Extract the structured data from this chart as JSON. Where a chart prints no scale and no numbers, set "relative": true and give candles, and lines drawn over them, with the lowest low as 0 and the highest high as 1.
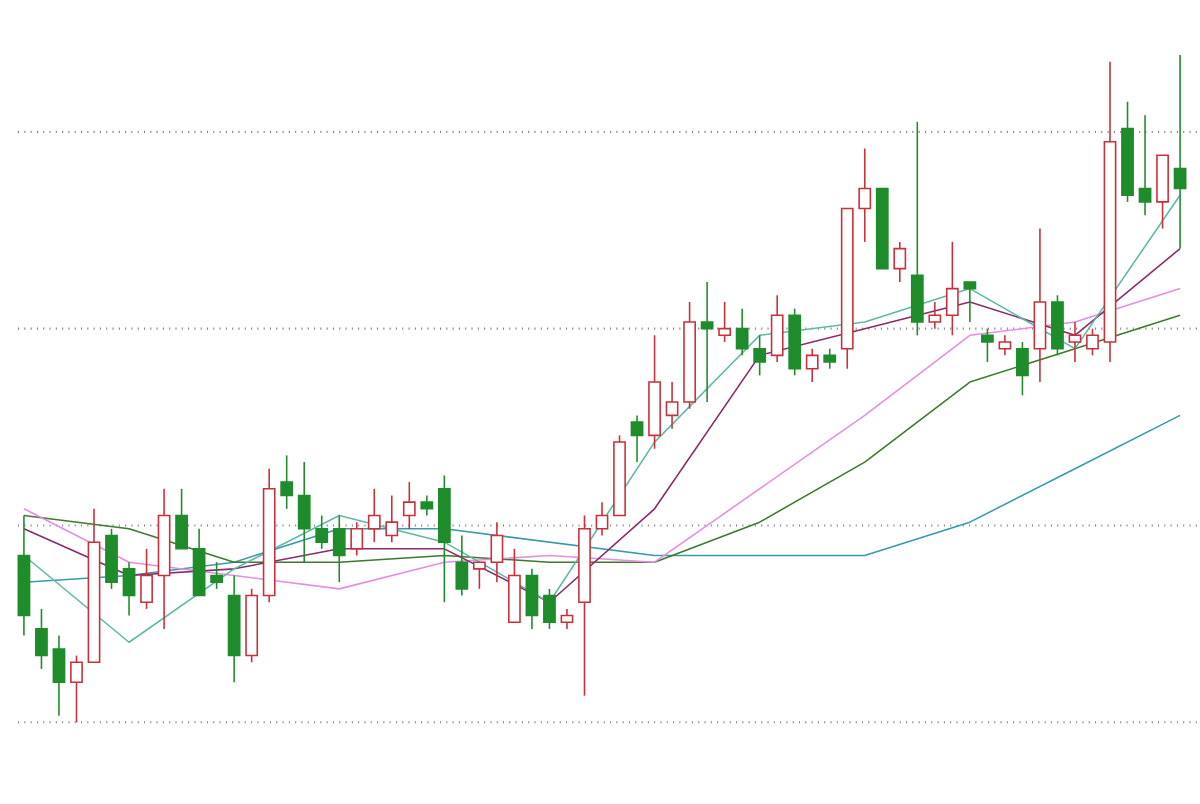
{
  "chart_data": {
    "type": "candlestick",
    "relative": true,
    "grid": "y",
    "categories": [
      null,
      null,
      null,
      null,
      null,
      null,
      null,
      null,
      null,
      null,
      null,
      null,
      null,
      null,
      null,
      null,
      null,
      null,
      null,
      null,
      null,
      null,
      null,
      null,
      null,
      null,
      null,
      null,
      null,
      null,
      null,
      null,
      null,
      null,
      null,
      null,
      null,
      null,
      null,
      null,
      null,
      null,
      null,
      null,
      null,
      null,
      null,
      null,
      null,
      null,
      null,
      null,
      null,
      null,
      null,
      null,
      null,
      null,
      null,
      null,
      null,
      null,
      null,
      null,
      null,
      null,
      null
    ],
    "ohlc": [
      [
        0.25,
        0.31,
        0.13,
        0.16
      ],
      [
        0.14,
        0.17,
        0.08,
        0.1
      ],
      [
        0.11,
        0.13,
        0.01,
        0.06
      ],
      [
        0.06,
        0.1,
        0.0,
        0.09
      ],
      [
        0.09,
        0.32,
        0.09,
        0.27
      ],
      [
        0.28,
        0.29,
        0.2,
        0.21
      ],
      [
        0.23,
        0.24,
        0.16,
        0.19
      ],
      [
        0.18,
        0.26,
        0.17,
        0.22
      ],
      [
        0.22,
        0.35,
        0.14,
        0.31
      ],
      [
        0.31,
        0.35,
        0.26,
        0.26
      ],
      [
        0.26,
        0.29,
        0.19,
        0.19
      ],
      [
        0.22,
        0.24,
        0.2,
        0.21
      ],
      [
        0.19,
        0.22,
        0.06,
        0.1
      ],
      [
        0.1,
        0.2,
        0.09,
        0.19
      ],
      [
        0.19,
        0.38,
        0.18,
        0.35
      ],
      [
        0.36,
        0.4,
        0.32,
        0.34
      ],
      [
        0.34,
        0.39,
        0.24,
        0.29
      ],
      [
        0.29,
        0.31,
        0.26,
        0.27
      ],
      [
        0.29,
        0.31,
        0.21,
        0.25
      ],
      [
        0.26,
        0.3,
        0.25,
        0.29
      ],
      [
        0.29,
        0.35,
        0.27,
        0.31
      ],
      [
        0.28,
        0.34,
        0.27,
        0.3
      ],
      [
        0.31,
        0.36,
        0.29,
        0.33
      ],
      [
        0.33,
        0.34,
        0.31,
        0.32
      ],
      [
        0.35,
        0.37,
        0.18,
        0.27
      ],
      [
        0.24,
        0.28,
        0.19,
        0.2
      ],
      [
        0.23,
        0.24,
        0.2,
        0.24
      ],
      [
        0.24,
        0.3,
        0.21,
        0.28
      ],
      [
        0.15,
        0.26,
        0.15,
        0.22
      ],
      [
        0.22,
        0.23,
        0.14,
        0.16
      ],
      [
        0.19,
        0.2,
        0.14,
        0.15
      ],
      [
        0.15,
        0.17,
        0.14,
        0.16
      ],
      [
        0.18,
        0.31,
        0.04,
        0.29
      ],
      [
        0.29,
        0.33,
        0.28,
        0.31
      ],
      [
        0.31,
        0.43,
        0.31,
        0.42
      ],
      [
        0.45,
        0.46,
        0.39,
        0.43
      ],
      [
        0.43,
        0.58,
        0.41,
        0.51
      ],
      [
        0.46,
        0.51,
        0.44,
        0.48
      ],
      [
        0.48,
        0.63,
        0.47,
        0.6
      ],
      [
        0.6,
        0.66,
        0.48,
        0.59
      ],
      [
        0.58,
        0.63,
        0.57,
        0.59
      ],
      [
        0.59,
        0.62,
        0.55,
        0.56
      ],
      [
        0.56,
        0.58,
        0.52,
        0.54
      ],
      [
        0.55,
        0.64,
        0.54,
        0.61
      ],
      [
        0.61,
        0.62,
        0.52,
        0.53
      ],
      [
        0.53,
        0.56,
        0.51,
        0.55
      ],
      [
        0.55,
        0.56,
        0.53,
        0.54
      ],
      [
        0.56,
        0.77,
        0.53,
        0.77
      ],
      [
        0.77,
        0.86,
        0.72,
        0.8
      ],
      [
        0.8,
        0.8,
        0.68,
        0.68
      ],
      [
        0.68,
        0.72,
        0.66,
        0.71
      ],
      [
        0.67,
        0.9,
        0.58,
        0.6
      ],
      [
        0.6,
        0.63,
        0.59,
        0.61
      ],
      [
        0.61,
        0.72,
        0.58,
        0.65
      ],
      [
        0.66,
        0.66,
        0.6,
        0.65
      ],
      [
        0.58,
        0.59,
        0.54,
        0.57
      ],
      [
        0.56,
        0.58,
        0.55,
        0.57
      ],
      [
        0.56,
        0.57,
        0.49,
        0.52
      ],
      [
        0.56,
        0.74,
        0.51,
        0.63
      ],
      [
        0.63,
        0.64,
        0.55,
        0.56
      ],
      [
        0.57,
        0.6,
        0.54,
        0.58
      ],
      [
        0.56,
        0.59,
        0.55,
        0.58
      ],
      [
        0.57,
        0.99,
        0.54,
        0.87
      ],
      [
        0.89,
        0.93,
        0.78,
        0.79
      ],
      [
        0.8,
        0.91,
        0.76,
        0.78
      ],
      [
        0.78,
        0.85,
        0.74,
        0.85
      ],
      [
        0.83,
        1.0,
        0.71,
        0.8
      ]
    ],
    "series": [
      {
        "type": "line",
        "color": "#3a9aa8",
        "values": [
          0.21,
          null,
          null,
          null,
          null,
          null,
          0.22,
          null,
          null,
          null,
          null,
          null,
          0.24,
          null,
          null,
          null,
          null,
          null,
          0.29,
          null,
          null,
          null,
          null,
          null,
          0.29,
          null,
          null,
          null,
          null,
          null,
          0.27,
          null,
          null,
          null,
          null,
          null,
          0.25,
          null,
          null,
          null,
          null,
          null,
          0.25,
          null,
          null,
          null,
          null,
          null,
          0.25,
          null,
          null,
          null,
          null,
          null,
          0.3,
          null,
          null,
          null,
          null,
          null,
          0.38,
          null,
          null,
          null,
          null,
          null,
          0.46
        ]
      },
      {
        "type": "line",
        "color": "#3d7a2e",
        "values": [
          0.31,
          null,
          null,
          null,
          null,
          null,
          0.29,
          null,
          null,
          null,
          null,
          null,
          0.24,
          null,
          null,
          null,
          null,
          null,
          0.24,
          null,
          null,
          null,
          null,
          null,
          0.25,
          null,
          null,
          null,
          null,
          null,
          0.24,
          null,
          null,
          null,
          null,
          null,
          0.24,
          null,
          null,
          null,
          null,
          null,
          0.3,
          null,
          null,
          null,
          null,
          null,
          0.39,
          null,
          null,
          null,
          null,
          null,
          0.51,
          null,
          null,
          null,
          null,
          null,
          0.56,
          null,
          null,
          null,
          null,
          null,
          0.61
        ]
      },
      {
        "type": "line",
        "color": "#e58fe0",
        "values": [
          0.32,
          null,
          null,
          null,
          null,
          null,
          0.24,
          null,
          null,
          null,
          null,
          null,
          0.22,
          null,
          null,
          null,
          null,
          null,
          0.2,
          null,
          null,
          null,
          null,
          null,
          0.24,
          null,
          null,
          null,
          null,
          null,
          0.25,
          null,
          null,
          null,
          null,
          null,
          0.24,
          null,
          null,
          null,
          null,
          null,
          0.35,
          null,
          null,
          null,
          null,
          null,
          0.46,
          null,
          null,
          null,
          null,
          null,
          0.58,
          null,
          null,
          null,
          null,
          null,
          0.6,
          null,
          null,
          null,
          null,
          null,
          0.65
        ]
      },
      {
        "type": "line",
        "color": "#8a2a6a",
        "values": [
          0.29,
          null,
          null,
          null,
          null,
          null,
          0.22,
          null,
          null,
          null,
          null,
          null,
          0.23,
          null,
          null,
          null,
          null,
          null,
          0.26,
          null,
          null,
          null,
          null,
          null,
          0.26,
          null,
          null,
          null,
          null,
          null,
          0.18,
          null,
          null,
          null,
          null,
          null,
          0.32,
          null,
          null,
          null,
          null,
          null,
          0.55,
          null,
          null,
          null,
          null,
          null,
          0.59,
          null,
          null,
          null,
          null,
          null,
          0.63,
          null,
          null,
          null,
          null,
          null,
          0.58,
          null,
          null,
          null,
          null,
          null,
          0.71
        ]
      },
      {
        "type": "line",
        "color": "#5fb8a8",
        "values": [
          0.25,
          null,
          null,
          null,
          null,
          null,
          0.12,
          null,
          null,
          null,
          null,
          null,
          0.23,
          null,
          null,
          null,
          null,
          null,
          0.31,
          null,
          null,
          null,
          null,
          null,
          0.27,
          null,
          null,
          null,
          null,
          null,
          0.18,
          null,
          null,
          null,
          null,
          null,
          0.42,
          null,
          null,
          null,
          null,
          null,
          0.58,
          null,
          null,
          null,
          null,
          null,
          0.6,
          null,
          null,
          null,
          null,
          null,
          0.65,
          null,
          null,
          null,
          null,
          null,
          0.56,
          null,
          null,
          null,
          null,
          null,
          0.79
        ]
      }
    ]
  }
}
